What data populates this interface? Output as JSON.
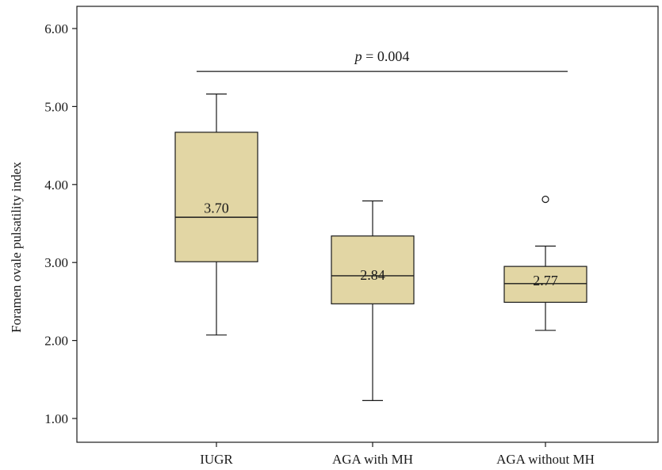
{
  "chart_data": {
    "type": "box",
    "ylabel": "Foramen ovale pulsatility index",
    "xlabel": "",
    "ylim": [
      0.9,
      6.5
    ],
    "yticks": [
      1.0,
      2.0,
      3.0,
      4.0,
      5.0,
      6.0
    ],
    "ytick_labels": [
      "1.00",
      "2.00",
      "3.00",
      "4.00",
      "5.00",
      "6.00"
    ],
    "categories": [
      "IUGR",
      "AGA with MH",
      "AGA without MH"
    ],
    "boxes": [
      {
        "category": "IUGR",
        "min": 2.07,
        "q1": 3.01,
        "median": 3.58,
        "q3": 4.67,
        "max": 5.16,
        "label": "3.70",
        "outliers": []
      },
      {
        "category": "AGA with MH",
        "min": 1.23,
        "q1": 2.47,
        "median": 2.83,
        "q3": 3.34,
        "max": 3.79,
        "label": "2.84",
        "outliers": []
      },
      {
        "category": "AGA without MH",
        "min": 2.13,
        "q1": 2.49,
        "median": 2.73,
        "q3": 2.95,
        "max": 3.21,
        "label": "2.77",
        "outliers": [
          3.81
        ]
      }
    ],
    "annotation": {
      "p_symbol": "p",
      "text": " = 0.004",
      "y": 5.45
    },
    "colors": {
      "box_fill": "#e2d6a4",
      "line": "#1a1a1a"
    }
  }
}
